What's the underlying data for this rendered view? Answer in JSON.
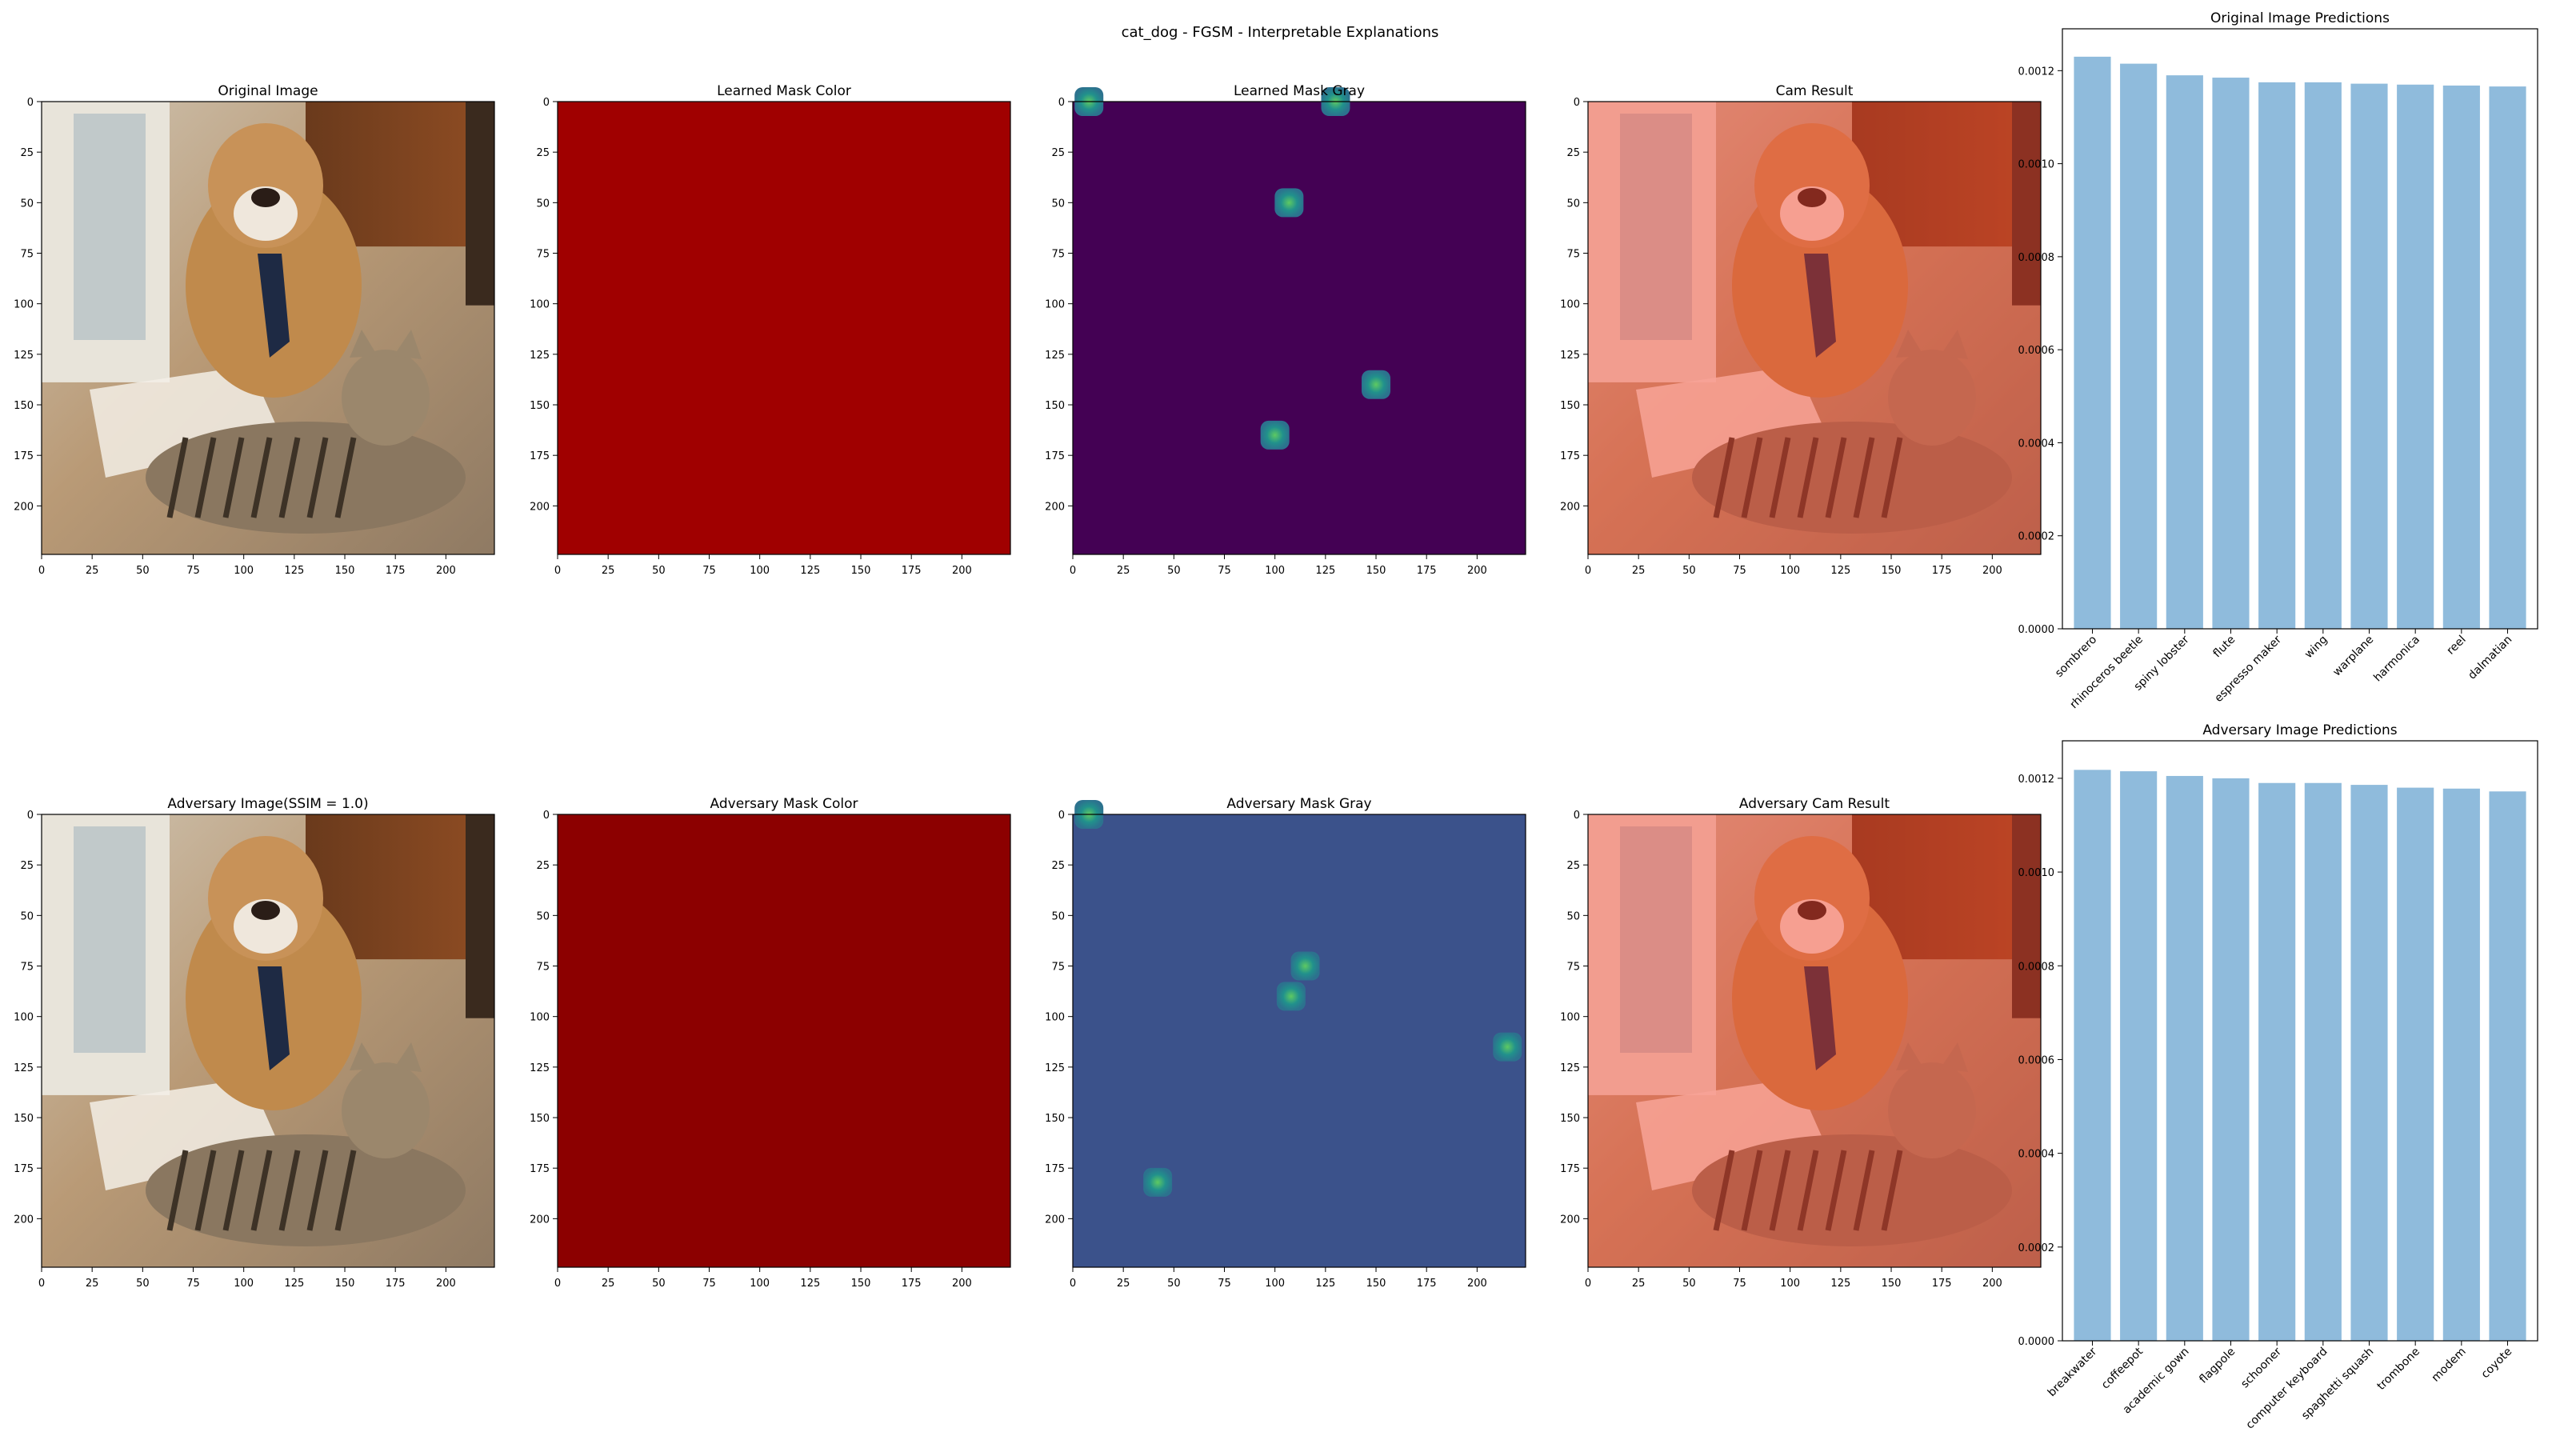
{
  "figure_title": "cat_dog - FGSM - Interpretable Explanations",
  "image_axis_ticks": {
    "x": [
      "0",
      "25",
      "50",
      "75",
      "100",
      "125",
      "150",
      "175",
      "200"
    ],
    "y": [
      "0",
      "25",
      "50",
      "75",
      "100",
      "125",
      "150",
      "175",
      "200"
    ]
  },
  "panels": {
    "row1": [
      {
        "title": "Original Image",
        "kind": "photo"
      },
      {
        "title": "Learned Mask Color",
        "kind": "mask-color"
      },
      {
        "title": "Learned Mask Gray",
        "kind": "mask-gray"
      },
      {
        "title": "Cam Result",
        "kind": "cam"
      }
    ],
    "row2": [
      {
        "title": "Adversary Image(SSIM = 1.0)",
        "kind": "photo"
      },
      {
        "title": "Adversary Mask Color",
        "kind": "mask-color"
      },
      {
        "title": "Adversary Mask Gray",
        "kind": "mask-gray"
      },
      {
        "title": "Adversary Cam Result",
        "kind": "cam"
      }
    ]
  },
  "mask_gray_spots": {
    "row1": [
      [
        8,
        0
      ],
      [
        130,
        0
      ],
      [
        107,
        50
      ],
      [
        150,
        140
      ],
      [
        100,
        165
      ]
    ],
    "row2": [
      [
        8,
        0
      ],
      [
        115,
        75
      ],
      [
        108,
        90
      ],
      [
        215,
        115
      ],
      [
        42,
        182
      ]
    ]
  },
  "colors": {
    "bar": "#8fbbdc",
    "mask_color_row1": "#a00000",
    "mask_color_row2": "#8c0000",
    "mask_gray_row1": "#440154",
    "mask_gray_row2": "#3b528b",
    "spot": "#21918c",
    "spot_core": "#5ec962",
    "cam_tint": "#ff3c28"
  },
  "chart_data": [
    {
      "type": "bar",
      "title": "Original Image Predictions",
      "categories": [
        "sombrero",
        "rhinoceros beetle",
        "spiny lobster",
        "flute",
        "espresso maker",
        "wing",
        "warplane",
        "harmonica",
        "reel",
        "dalmatian"
      ],
      "values": [
        0.00123,
        0.001215,
        0.00119,
        0.001185,
        0.001175,
        0.001175,
        0.001172,
        0.00117,
        0.001168,
        0.001166
      ],
      "ylim": [
        0,
        0.00129
      ],
      "yticks": [
        "0.0000",
        "0.0002",
        "0.0004",
        "0.0006",
        "0.0008",
        "0.0010",
        "0.0012"
      ],
      "grid": false
    },
    {
      "type": "bar",
      "title": "Adversary Image Predictions",
      "categories": [
        "breakwater",
        "coffeepot",
        "academic gown",
        "flagpole",
        "schooner",
        "computer keyboard",
        "spaghetti squash",
        "trombone",
        "modem",
        "coyote"
      ],
      "values": [
        0.001218,
        0.001215,
        0.001205,
        0.0012,
        0.00119,
        0.00119,
        0.001186,
        0.00118,
        0.001178,
        0.001172
      ],
      "ylim": [
        0,
        0.00128
      ],
      "yticks": [
        "0.0000",
        "0.0002",
        "0.0004",
        "0.0006",
        "0.0008",
        "0.0010",
        "0.0012"
      ],
      "grid": false
    }
  ]
}
